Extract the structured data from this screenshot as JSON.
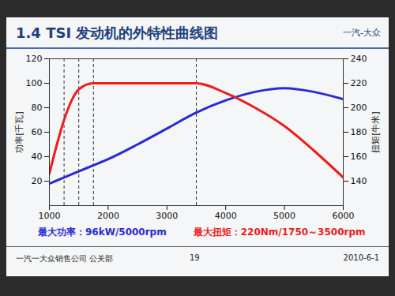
{
  "chart_data": {
    "type": "line",
    "title": "1.4 TSI 发动机的外特性曲线图",
    "logo": "一汽-大众",
    "x": [
      1000,
      1100,
      1250,
      1400,
      1500,
      1750,
      2000,
      2500,
      3000,
      3500,
      4000,
      4500,
      5000,
      5500,
      6000
    ],
    "xlim": [
      1000,
      6000
    ],
    "xticks": [
      1000,
      2000,
      3000,
      4000,
      5000,
      6000
    ],
    "ylim": [
      0,
      120
    ],
    "yticks": [
      20,
      40,
      60,
      80,
      100,
      120
    ],
    "y_label": "功率[千瓦]",
    "y2lim": [
      120,
      240
    ],
    "y2ticks": [
      140,
      160,
      180,
      200,
      220,
      240
    ],
    "y2_label": "扭矩[牛米]",
    "vlines": [
      1250,
      1500,
      1750,
      3500
    ],
    "series": [
      {
        "color": "#2a2ad0",
        "values": [
          18,
          20,
          23,
          26,
          28,
          33,
          38,
          50,
          63,
          76,
          86,
          93,
          96,
          93,
          87
        ]
      },
      {
        "color": "#ee1c1c",
        "axis": "y2",
        "values": [
          146,
          165,
          190,
          208,
          215,
          220,
          220,
          220,
          220,
          220,
          212,
          200,
          185,
          165,
          143
        ]
      }
    ],
    "notes": [
      {
        "text": "最大功率：96kW/5000rpm",
        "color": "#2a2ad0"
      },
      {
        "text": "最大扭矩：220Nm/1750～3500rpm",
        "color": "#ee1c1c"
      }
    ],
    "footer": {
      "left": "一汽一大众销售公司 公关部",
      "page": "19",
      "date": "2010-6-1"
    }
  }
}
